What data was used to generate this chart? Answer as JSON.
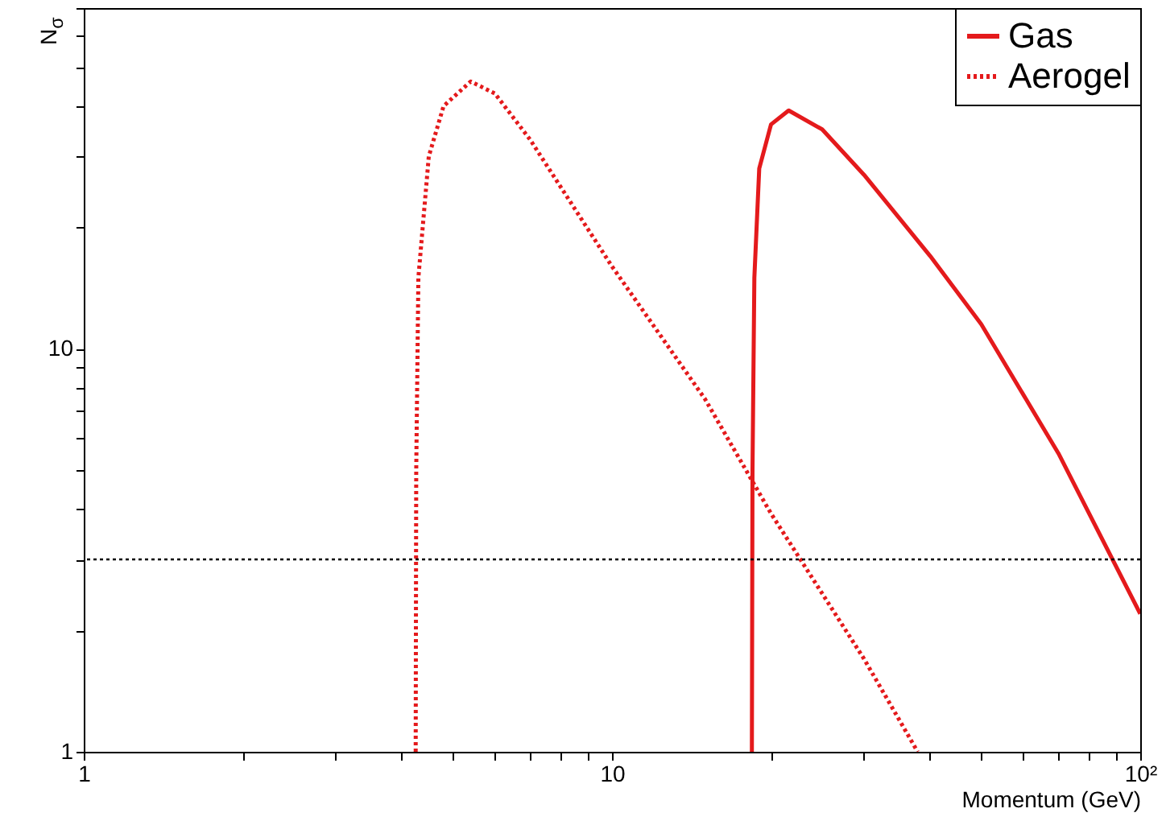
{
  "chart_data": {
    "type": "line",
    "xlabel": "Momentum (GeV)",
    "ylabel": "N$_{σ}$",
    "log": "xy",
    "grid": false,
    "legend": "top right",
    "marker": "none",
    "xlim": [
      1,
      100
    ],
    "xticks": [
      1,
      {
        "value": 2,
        "label": null
      },
      {
        "value": 3,
        "label": null
      },
      {
        "value": 4,
        "label": null
      },
      {
        "value": 5,
        "label": null
      },
      {
        "value": 6,
        "label": null
      },
      {
        "value": 7,
        "label": null
      },
      {
        "value": 8,
        "label": null
      },
      {
        "value": 9,
        "label": null
      },
      10,
      {
        "value": 20,
        "label": null
      },
      {
        "value": 30,
        "label": null
      },
      {
        "value": 40,
        "label": null
      },
      {
        "value": 50,
        "label": null
      },
      {
        "value": 60,
        "label": null
      },
      {
        "value": 70,
        "label": null
      },
      {
        "value": 80,
        "label": null
      },
      {
        "value": 90,
        "label": null
      },
      {
        "value": 100,
        "label": "10²"
      }
    ],
    "ylim": [
      1,
      70
    ],
    "yticks": [
      1,
      {
        "value": 2,
        "label": null
      },
      {
        "value": 3,
        "label": null
      },
      {
        "value": 4,
        "label": null
      },
      {
        "value": 5,
        "label": null
      },
      {
        "value": 6,
        "label": null
      },
      {
        "value": 7,
        "label": null
      },
      {
        "value": 8,
        "label": null
      },
      {
        "value": 9,
        "label": null
      },
      10,
      {
        "value": 20,
        "label": null
      },
      {
        "value": 30,
        "label": null
      },
      {
        "value": 40,
        "label": null
      },
      {
        "value": 50,
        "label": null
      },
      {
        "value": 60,
        "label": null
      },
      {
        "value": 70,
        "label": null
      }
    ],
    "series": [
      {
        "name": "Gas",
        "color": "#e41a1c",
        "line_style": "solid",
        "x": [
          18.4,
          18.45,
          18.6,
          19,
          20,
          21.6,
          25,
          30,
          40,
          50,
          70,
          100
        ],
        "values": [
          1,
          5,
          15,
          28,
          36,
          39,
          35,
          27,
          17,
          11.5,
          5.5,
          2.2
        ]
      },
      {
        "name": "Aerogel",
        "color": "#e41a1c",
        "line_style": "dotted",
        "x": [
          4.25,
          4.26,
          4.3,
          4.5,
          4.8,
          5.4,
          6,
          7,
          10,
          15,
          20,
          30,
          37.9
        ],
        "values": [
          1,
          5,
          15,
          30,
          40,
          46,
          43,
          33,
          16,
          7.5,
          3.9,
          1.7,
          1
        ]
      }
    ],
    "ref_lines": [
      {
        "axis": "y",
        "value": 3,
        "color": "#000000",
        "line_style": "dotted"
      }
    ]
  }
}
